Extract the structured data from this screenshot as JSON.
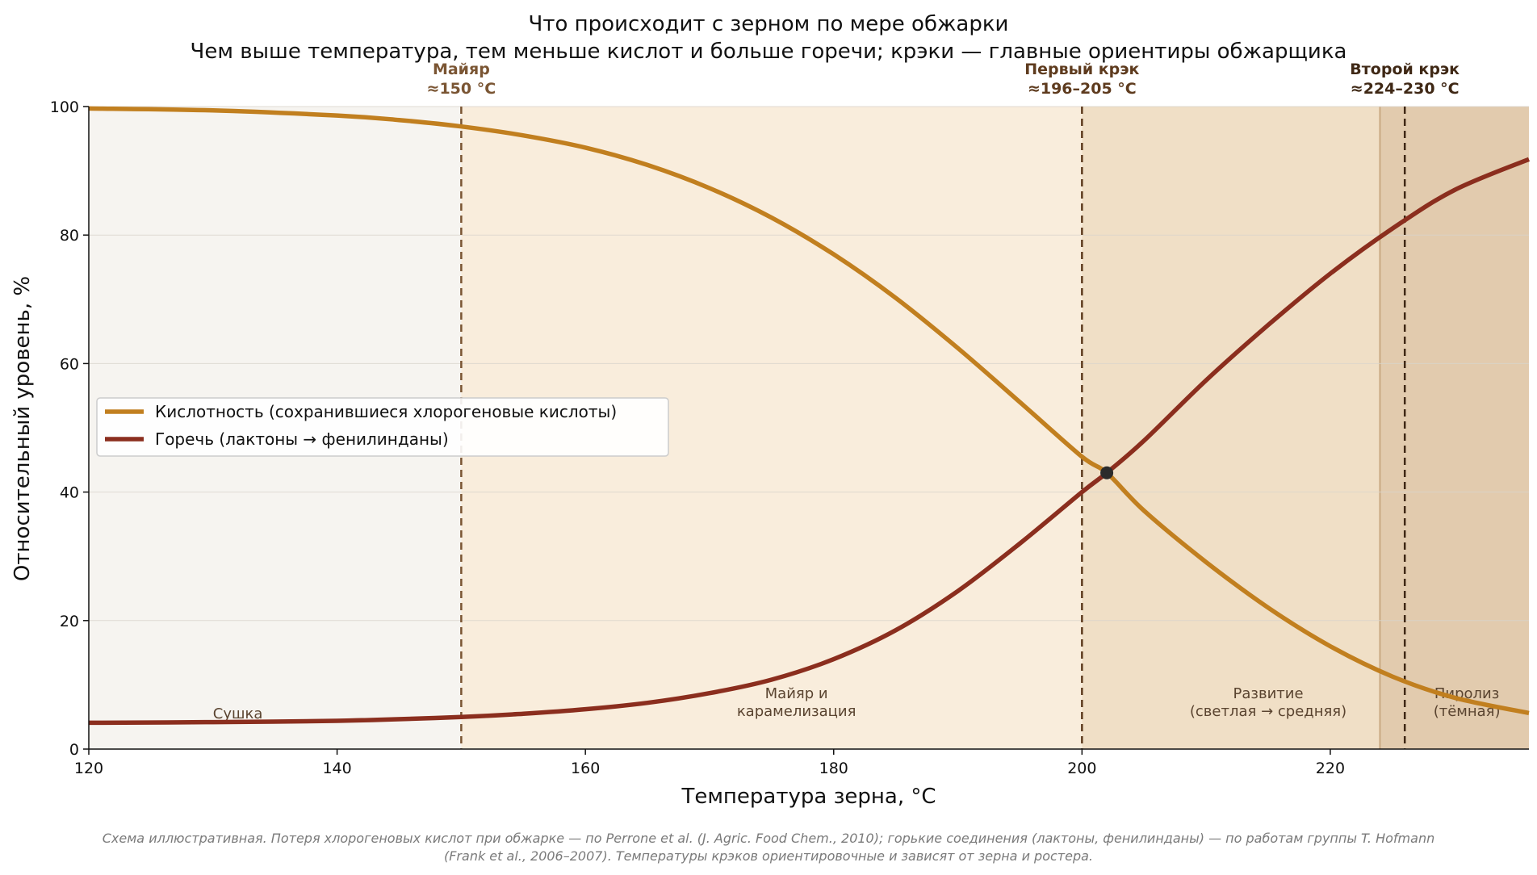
{
  "chart_data": {
    "type": "line",
    "title": "Что происходит с зерном по мере обжарки",
    "subtitle": "Чем выше температура, тем меньше кислот и больше горечи; крэки — главные ориентиры обжарщика",
    "xlabel": "Температура зерна, °C",
    "ylabel": "Относительный уровень, %",
    "xlim": [
      120,
      236
    ],
    "ylim": [
      0,
      100
    ],
    "xticks": [
      120,
      140,
      160,
      180,
      200,
      220
    ],
    "yticks": [
      0,
      20,
      40,
      60,
      80,
      100
    ],
    "grid": "horizontal",
    "legend_position": "center-left",
    "series": [
      {
        "name": "Кислотность (сохранившиеся хлорогеновые кислоты)",
        "color": "#c17f1f",
        "x": [
          120,
          130,
          140,
          145,
          150,
          155,
          160,
          165,
          170,
          175,
          180,
          185,
          190,
          195,
          200,
          202,
          205,
          210,
          215,
          220,
          225,
          230,
          236
        ],
        "y": [
          99.7,
          99.4,
          98.6,
          97.9,
          96.9,
          95.5,
          93.6,
          90.9,
          87.3,
          82.7,
          77.0,
          70.2,
          62.4,
          54.0,
          45.5,
          43.0,
          37.1,
          29.1,
          22.0,
          16.0,
          11.3,
          8.0,
          5.6
        ]
      },
      {
        "name": "Горечь (лактоны → фенилинданы)",
        "color": "#8b2e1e",
        "x": [
          120,
          130,
          140,
          150,
          155,
          160,
          165,
          170,
          175,
          180,
          185,
          190,
          195,
          200,
          202,
          205,
          210,
          215,
          220,
          225,
          230,
          236
        ],
        "y": [
          4.1,
          4.2,
          4.4,
          5.0,
          5.5,
          6.2,
          7.2,
          8.7,
          10.8,
          14.0,
          18.5,
          24.6,
          32.0,
          40.0,
          43.0,
          48.0,
          57.4,
          66.0,
          74.0,
          81.0,
          87.0,
          91.8
        ]
      }
    ],
    "intersection": {
      "x": 202,
      "y": 43
    },
    "zones": [
      {
        "label": "Сушка",
        "from": 120,
        "to": 150,
        "color": "#f6f4f0"
      },
      {
        "label": "Майяр и\nкарамелизация",
        "from": 150,
        "to": 200,
        "color": "#f9eddc"
      },
      {
        "label": "Развитие\n(светлая → средняя)",
        "from": 200,
        "to": 224,
        "color": "#f0dfc6"
      },
      {
        "label": "Пиролиз\n(тёмная)",
        "from": 224,
        "to": 236,
        "color": "#e2cbae"
      }
    ],
    "events": [
      {
        "label": "Майяр",
        "value": "≈150 °C",
        "x": 150,
        "color": "#7a5533"
      },
      {
        "label": "Первый крэк",
        "value": "≈196–205 °C",
        "x": 200,
        "color": "#5e3b1e"
      },
      {
        "label": "Второй крэк",
        "value": "≈224–230 °C",
        "x": 226,
        "color": "#3f2815"
      }
    ],
    "footnote": "Схема иллюстративная. Потеря хлорогеновых кислот при обжарке — по Perrone et al. (J. Agric. Food Chem., 2010); горькие соединения (лактоны, фенилинданы) — по работам группы T. Hofmann\n(Frank et al., 2006–2007). Температуры крэков ориентировочные и зависят от зерна и ростера."
  }
}
